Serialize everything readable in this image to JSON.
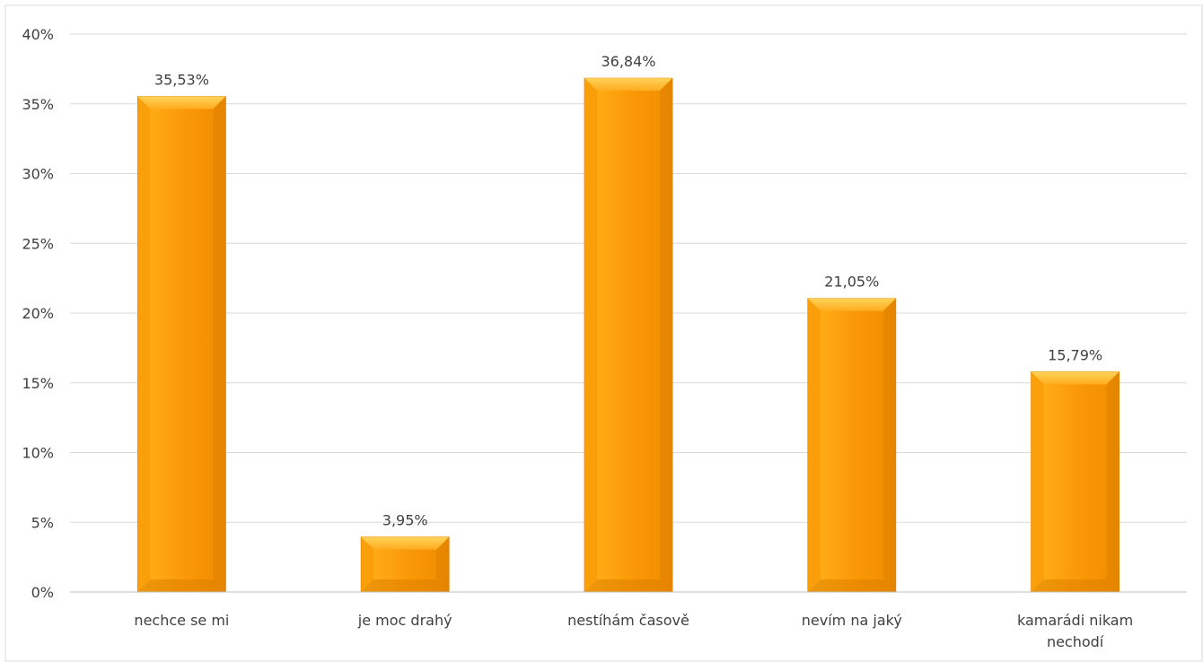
{
  "chart_data": {
    "type": "bar",
    "title": "",
    "xlabel": "",
    "ylabel": "",
    "categories": [
      [
        "nechce se mi"
      ],
      [
        "je moc drahý"
      ],
      [
        "nestíhám časově"
      ],
      [
        "nevím na jaký"
      ],
      [
        "kamarádi nikam",
        "nechodí"
      ]
    ],
    "values": [
      35.53,
      3.95,
      36.84,
      21.05,
      15.79
    ],
    "data_labels": [
      "35,53%",
      "3,95%",
      "36,84%",
      "21,05%",
      "15,79%"
    ],
    "ylim": [
      0,
      40
    ],
    "yticks": [
      0,
      5,
      10,
      15,
      20,
      25,
      30,
      35,
      40
    ],
    "ytick_labels": [
      "0%",
      "5%",
      "10%",
      "15%",
      "20%",
      "25%",
      "30%",
      "35%",
      "40%"
    ],
    "grid": true,
    "legend": "none",
    "colors": {
      "bar_main": "#fb9a08",
      "bar_light": "#ffc84d",
      "bar_dark": "#d97e00",
      "grid": "#d9d9d9",
      "axis": "#bfbfbf",
      "frame": "#d9d9d9"
    }
  }
}
